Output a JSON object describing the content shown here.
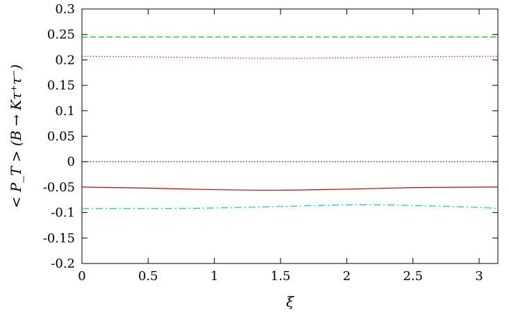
{
  "chart_data": {
    "type": "line",
    "xlabel": "ξ",
    "ylabel": "< P_T > (B → Kτ⁺τ⁻)",
    "xlim": [
      0,
      3.1416
    ],
    "ylim": [
      -0.2,
      0.3
    ],
    "xticks": [
      0,
      0.5,
      1,
      1.5,
      2,
      2.5,
      3
    ],
    "xtick_labels": [
      "0",
      "0.5",
      "1",
      "1.5",
      "2",
      "2.5",
      "3"
    ],
    "yticks": [
      -0.2,
      -0.15,
      -0.1,
      -0.05,
      0,
      0.05,
      0.1,
      0.15,
      0.2,
      0.25,
      0.3
    ],
    "ytick_labels": [
      "-0.2",
      "-0.15",
      "-0.1",
      "-0.05",
      "0",
      "0.05",
      "0.1",
      "0.15",
      "0.2",
      "0.25",
      "0.3"
    ],
    "grid": false,
    "series": [
      {
        "color": "#00cc00",
        "dash": "dashed",
        "x": [
          0,
          0.5,
          1,
          1.5,
          2,
          2.5,
          3,
          3.1416
        ],
        "y": [
          0.245,
          0.245,
          0.245,
          0.245,
          0.245,
          0.245,
          0.245,
          0.245
        ]
      },
      {
        "color": "#cc00cc",
        "dash": "dotted",
        "x": [
          0,
          0.5,
          1,
          1.5,
          2,
          2.5,
          3,
          3.1416
        ],
        "y": [
          0.207,
          0.206,
          0.204,
          0.203,
          0.204,
          0.206,
          0.207,
          0.207
        ]
      },
      {
        "color": "#000000",
        "dash": "dotted",
        "x": [
          0,
          3.1416
        ],
        "y": [
          0,
          0
        ]
      },
      {
        "color": "#cc0000",
        "dash": "solid",
        "x": [
          0,
          0.5,
          1,
          1.5,
          2,
          2.5,
          3,
          3.1416
        ],
        "y": [
          -0.05,
          -0.052,
          -0.055,
          -0.056,
          -0.054,
          -0.051,
          -0.05,
          -0.05
        ]
      },
      {
        "color": "#00cccc",
        "dash": "dashdot",
        "x": [
          0,
          0.5,
          1,
          1.5,
          2,
          2.5,
          3,
          3.1416
        ],
        "y": [
          -0.092,
          -0.092,
          -0.091,
          -0.088,
          -0.085,
          -0.086,
          -0.09,
          -0.092
        ]
      }
    ]
  }
}
